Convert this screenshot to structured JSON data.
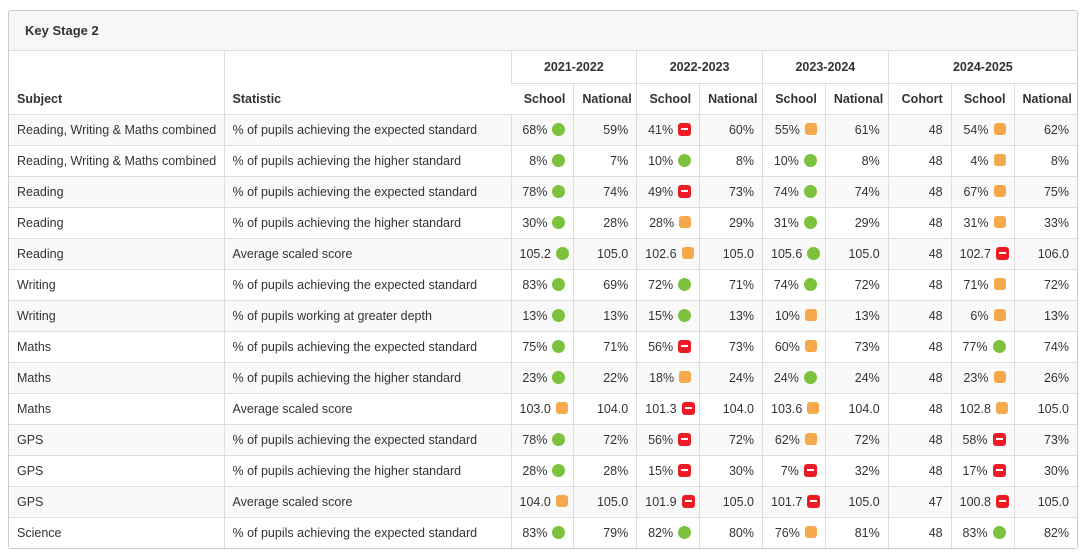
{
  "panel": {
    "title": "Key Stage 2"
  },
  "icons": {
    "green-circle": {
      "color": "#7cc23c",
      "shape": "circle"
    },
    "orange-square": {
      "color": "#f5a94b",
      "shape": "rounded-square"
    },
    "red-minus": {
      "color": "#ed1c24",
      "shape": "rounded-square-with-minus"
    }
  },
  "table": {
    "col_headers": {
      "subject": "Subject",
      "statistic": "Statistic",
      "year_groups": [
        {
          "label": "2021-2022",
          "cols": [
            "School",
            "National"
          ]
        },
        {
          "label": "2022-2023",
          "cols": [
            "School",
            "National"
          ]
        },
        {
          "label": "2023-2024",
          "cols": [
            "School",
            "National"
          ]
        },
        {
          "label": "2024-2025",
          "cols": [
            "Cohort",
            "School",
            "National"
          ]
        }
      ]
    },
    "rows": [
      {
        "subject": "Reading, Writing & Maths combined",
        "statistic": "% of pupils achieving the expected standard",
        "cells": [
          {
            "v": "68%",
            "icon": "green-circle"
          },
          {
            "v": "59%"
          },
          {
            "v": "41%",
            "icon": "red-minus"
          },
          {
            "v": "60%"
          },
          {
            "v": "55%",
            "icon": "orange-square"
          },
          {
            "v": "61%"
          },
          {
            "v": "48"
          },
          {
            "v": "54%",
            "icon": "orange-square"
          },
          {
            "v": "62%"
          }
        ]
      },
      {
        "subject": "Reading, Writing & Maths combined",
        "statistic": "% of pupils achieving the higher standard",
        "cells": [
          {
            "v": "8%",
            "icon": "green-circle"
          },
          {
            "v": "7%"
          },
          {
            "v": "10%",
            "icon": "green-circle"
          },
          {
            "v": "8%"
          },
          {
            "v": "10%",
            "icon": "green-circle"
          },
          {
            "v": "8%"
          },
          {
            "v": "48"
          },
          {
            "v": "4%",
            "icon": "orange-square"
          },
          {
            "v": "8%"
          }
        ]
      },
      {
        "subject": "Reading",
        "statistic": "% of pupils achieving the expected standard",
        "cells": [
          {
            "v": "78%",
            "icon": "green-circle"
          },
          {
            "v": "74%"
          },
          {
            "v": "49%",
            "icon": "red-minus"
          },
          {
            "v": "73%"
          },
          {
            "v": "74%",
            "icon": "green-circle"
          },
          {
            "v": "74%"
          },
          {
            "v": "48"
          },
          {
            "v": "67%",
            "icon": "orange-square"
          },
          {
            "v": "75%"
          }
        ]
      },
      {
        "subject": "Reading",
        "statistic": "% of pupils achieving the higher standard",
        "cells": [
          {
            "v": "30%",
            "icon": "green-circle"
          },
          {
            "v": "28%"
          },
          {
            "v": "28%",
            "icon": "orange-square"
          },
          {
            "v": "29%"
          },
          {
            "v": "31%",
            "icon": "green-circle"
          },
          {
            "v": "29%"
          },
          {
            "v": "48"
          },
          {
            "v": "31%",
            "icon": "orange-square"
          },
          {
            "v": "33%"
          }
        ]
      },
      {
        "subject": "Reading",
        "statistic": "Average scaled score",
        "cells": [
          {
            "v": "105.2",
            "icon": "green-circle"
          },
          {
            "v": "105.0"
          },
          {
            "v": "102.6",
            "icon": "orange-square"
          },
          {
            "v": "105.0"
          },
          {
            "v": "105.6",
            "icon": "green-circle"
          },
          {
            "v": "105.0"
          },
          {
            "v": "48"
          },
          {
            "v": "102.7",
            "icon": "red-minus"
          },
          {
            "v": "106.0"
          }
        ]
      },
      {
        "subject": "Writing",
        "statistic": "% of pupils achieving the expected standard",
        "cells": [
          {
            "v": "83%",
            "icon": "green-circle"
          },
          {
            "v": "69%"
          },
          {
            "v": "72%",
            "icon": "green-circle"
          },
          {
            "v": "71%"
          },
          {
            "v": "74%",
            "icon": "green-circle"
          },
          {
            "v": "72%"
          },
          {
            "v": "48"
          },
          {
            "v": "71%",
            "icon": "orange-square"
          },
          {
            "v": "72%"
          }
        ]
      },
      {
        "subject": "Writing",
        "statistic": "% of pupils working at greater depth",
        "cells": [
          {
            "v": "13%",
            "icon": "green-circle"
          },
          {
            "v": "13%"
          },
          {
            "v": "15%",
            "icon": "green-circle"
          },
          {
            "v": "13%"
          },
          {
            "v": "10%",
            "icon": "orange-square"
          },
          {
            "v": "13%"
          },
          {
            "v": "48"
          },
          {
            "v": "6%",
            "icon": "orange-square"
          },
          {
            "v": "13%"
          }
        ]
      },
      {
        "subject": "Maths",
        "statistic": "% of pupils achieving the expected standard",
        "cells": [
          {
            "v": "75%",
            "icon": "green-circle"
          },
          {
            "v": "71%"
          },
          {
            "v": "56%",
            "icon": "red-minus"
          },
          {
            "v": "73%"
          },
          {
            "v": "60%",
            "icon": "orange-square"
          },
          {
            "v": "73%"
          },
          {
            "v": "48"
          },
          {
            "v": "77%",
            "icon": "green-circle"
          },
          {
            "v": "74%"
          }
        ]
      },
      {
        "subject": "Maths",
        "statistic": "% of pupils achieving the higher standard",
        "cells": [
          {
            "v": "23%",
            "icon": "green-circle"
          },
          {
            "v": "22%"
          },
          {
            "v": "18%",
            "icon": "orange-square"
          },
          {
            "v": "24%"
          },
          {
            "v": "24%",
            "icon": "green-circle"
          },
          {
            "v": "24%"
          },
          {
            "v": "48"
          },
          {
            "v": "23%",
            "icon": "orange-square"
          },
          {
            "v": "26%"
          }
        ]
      },
      {
        "subject": "Maths",
        "statistic": "Average scaled score",
        "cells": [
          {
            "v": "103.0",
            "icon": "orange-square"
          },
          {
            "v": "104.0"
          },
          {
            "v": "101.3",
            "icon": "red-minus"
          },
          {
            "v": "104.0"
          },
          {
            "v": "103.6",
            "icon": "orange-square"
          },
          {
            "v": "104.0"
          },
          {
            "v": "48"
          },
          {
            "v": "102.8",
            "icon": "orange-square"
          },
          {
            "v": "105.0"
          }
        ]
      },
      {
        "subject": "GPS",
        "statistic": "% of pupils achieving the expected standard",
        "cells": [
          {
            "v": "78%",
            "icon": "green-circle"
          },
          {
            "v": "72%"
          },
          {
            "v": "56%",
            "icon": "red-minus"
          },
          {
            "v": "72%"
          },
          {
            "v": "62%",
            "icon": "orange-square"
          },
          {
            "v": "72%"
          },
          {
            "v": "48"
          },
          {
            "v": "58%",
            "icon": "red-minus"
          },
          {
            "v": "73%"
          }
        ]
      },
      {
        "subject": "GPS",
        "statistic": "% of pupils achieving the higher standard",
        "cells": [
          {
            "v": "28%",
            "icon": "green-circle"
          },
          {
            "v": "28%"
          },
          {
            "v": "15%",
            "icon": "red-minus"
          },
          {
            "v": "30%"
          },
          {
            "v": "7%",
            "icon": "red-minus"
          },
          {
            "v": "32%"
          },
          {
            "v": "48"
          },
          {
            "v": "17%",
            "icon": "red-minus"
          },
          {
            "v": "30%"
          }
        ]
      },
      {
        "subject": "GPS",
        "statistic": "Average scaled score",
        "cells": [
          {
            "v": "104.0",
            "icon": "orange-square"
          },
          {
            "v": "105.0"
          },
          {
            "v": "101.9",
            "icon": "red-minus"
          },
          {
            "v": "105.0"
          },
          {
            "v": "101.7",
            "icon": "red-minus"
          },
          {
            "v": "105.0"
          },
          {
            "v": "47"
          },
          {
            "v": "100.8",
            "icon": "red-minus"
          },
          {
            "v": "105.0"
          }
        ]
      },
      {
        "subject": "Science",
        "statistic": "% of pupils achieving the expected standard",
        "cells": [
          {
            "v": "83%",
            "icon": "green-circle"
          },
          {
            "v": "79%"
          },
          {
            "v": "82%",
            "icon": "green-circle"
          },
          {
            "v": "80%"
          },
          {
            "v": "76%",
            "icon": "orange-square"
          },
          {
            "v": "81%"
          },
          {
            "v": "48"
          },
          {
            "v": "83%",
            "icon": "green-circle"
          },
          {
            "v": "82%"
          }
        ]
      }
    ]
  }
}
